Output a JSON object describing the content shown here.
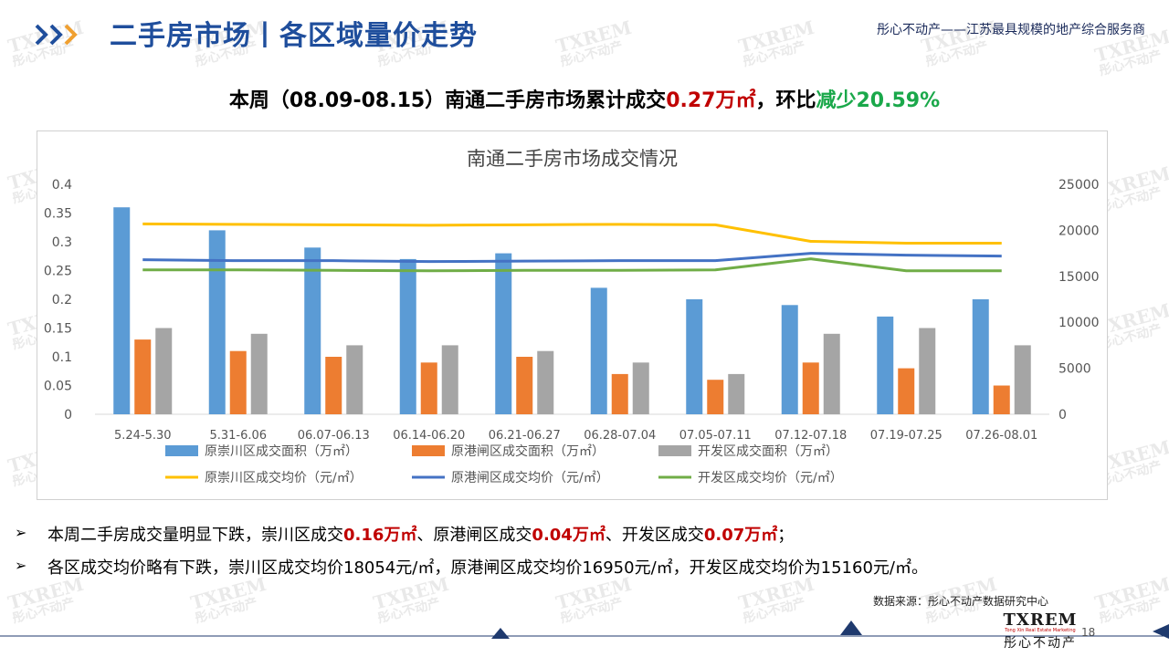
{
  "header": {
    "title": "二手房市场丨各区域量价走势",
    "tagline": "彤心不动产——江苏最具规模的地产综合服务商"
  },
  "headline": {
    "prefix": "本周（08.09-08.15）南通二手房市场累计成交",
    "volume": "0.27万㎡",
    "mid": "，环比",
    "change": "减少20.59%"
  },
  "chart_data": {
    "type": "bar",
    "title": "南通二手房市场成交情况",
    "categories": [
      "5.24-5.30",
      "5.31-6.06",
      "06.07-06.13",
      "06.14-06.20",
      "06.21-06.27",
      "06.28-07.04",
      "07.05-07.11",
      "07.12-07.18",
      "07.19-07.25",
      "07.26-08.01"
    ],
    "y_left": {
      "ylim": [
        0,
        0.4
      ],
      "ticks": [
        "0",
        "0.05",
        "0.1",
        "0.15",
        "0.2",
        "0.25",
        "0.3",
        "0.35",
        "0.4"
      ]
    },
    "y_right": {
      "ylim": [
        0,
        25000
      ],
      "ticks": [
        "0",
        "5000",
        "10000",
        "15000",
        "20000",
        "25000"
      ]
    },
    "series": [
      {
        "name": "原崇川区成交面积（万㎡）",
        "type": "bar",
        "axis": "left",
        "color": "#5b9bd5",
        "values": [
          0.36,
          0.32,
          0.29,
          0.27,
          0.28,
          0.22,
          0.2,
          0.19,
          0.17,
          0.2
        ]
      },
      {
        "name": "原港闸区成交面积（万㎡）",
        "type": "bar",
        "axis": "left",
        "color": "#ed7d31",
        "values": [
          0.13,
          0.11,
          0.1,
          0.09,
          0.1,
          0.07,
          0.06,
          0.09,
          0.08,
          0.05
        ]
      },
      {
        "name": "开发区成交面积（万㎡）",
        "type": "bar",
        "axis": "left",
        "color": "#a5a5a5",
        "values": [
          0.15,
          0.14,
          0.12,
          0.12,
          0.11,
          0.09,
          0.07,
          0.14,
          0.15,
          0.12
        ]
      },
      {
        "name": "原崇川区成交均价（元/㎡）",
        "type": "line",
        "axis": "right",
        "color": "#ffc000",
        "values": [
          20700,
          20650,
          20600,
          20550,
          20600,
          20650,
          20600,
          18800,
          18600,
          18600
        ]
      },
      {
        "name": "原港闸区成交均价（元/㎡）",
        "type": "line",
        "axis": "right",
        "color": "#4472c4",
        "values": [
          16800,
          16700,
          16700,
          16600,
          16650,
          16700,
          16700,
          17500,
          17300,
          17200
        ]
      },
      {
        "name": "开发区成交均价（元/㎡）",
        "type": "line",
        "axis": "right",
        "color": "#70ad47",
        "values": [
          15700,
          15700,
          15650,
          15600,
          15650,
          15650,
          15700,
          16900,
          15600,
          15600
        ]
      }
    ],
    "grid": false,
    "legend": "bottom"
  },
  "bullets": [
    {
      "mark": "➢",
      "parts": [
        {
          "text": "本周二手房成交量明显下跌，崇川区成交",
          "style": "normal"
        },
        {
          "text": "0.16万㎡",
          "style": "red"
        },
        {
          "text": "、原港闸区成交",
          "style": "normal"
        },
        {
          "text": "0.04万㎡",
          "style": "red"
        },
        {
          "text": "、开发区成交",
          "style": "normal"
        },
        {
          "text": "0.07万㎡",
          "style": "red"
        },
        {
          "text": "；",
          "style": "normal"
        }
      ]
    },
    {
      "mark": "➢",
      "parts": [
        {
          "text": "各区成交均价略有下跌，崇川区成交均价18054元/㎡，原港闸区成交均价16950元/㎡，开发区成交均价为15160元/㎡。",
          "style": "normal"
        }
      ]
    }
  ],
  "footer": {
    "source": "数据来源：彤心不动产数据研究中心",
    "brand": "TXREM",
    "brand_sub": "Tong Xin Real Estate Marketing",
    "brand_cn": "彤心不动产",
    "page": "18"
  },
  "watermark": {
    "logo": "TXREM",
    "text": "彤心不动产"
  },
  "colors": {
    "title": "#1f4e9c",
    "accent_red": "#c00000",
    "accent_green": "#1aa84a"
  }
}
